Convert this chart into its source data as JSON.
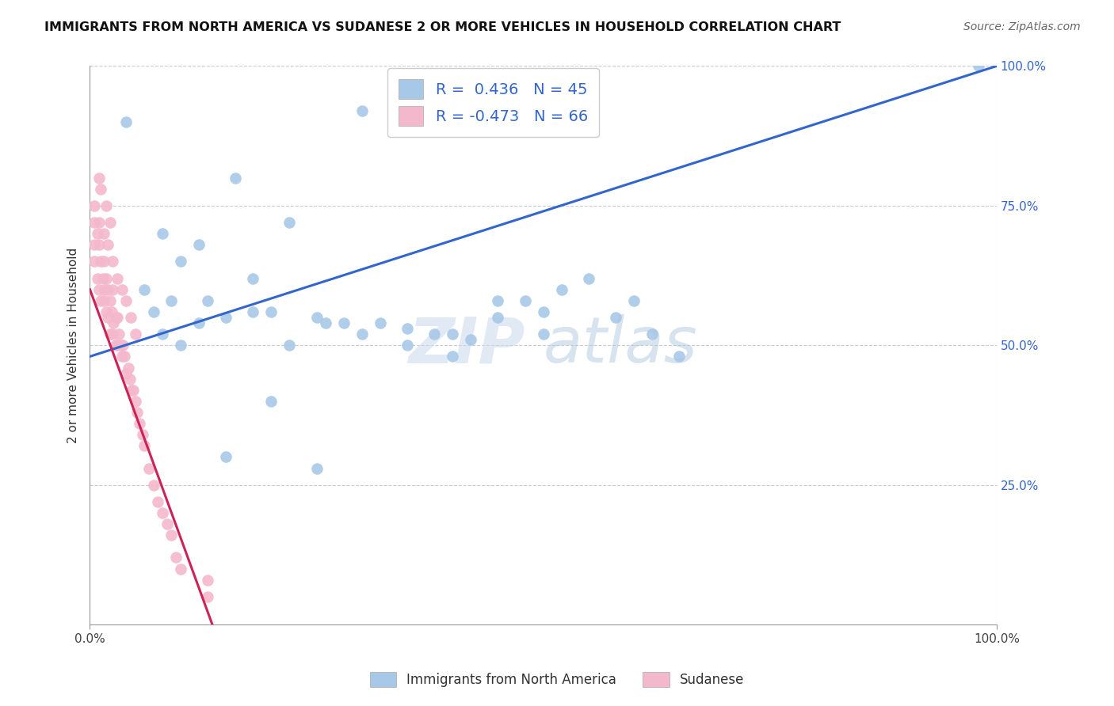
{
  "title": "IMMIGRANTS FROM NORTH AMERICA VS SUDANESE 2 OR MORE VEHICLES IN HOUSEHOLD CORRELATION CHART",
  "source": "Source: ZipAtlas.com",
  "ylabel": "2 or more Vehicles in Household",
  "xlim": [
    0,
    1.0
  ],
  "ylim": [
    0,
    1.0
  ],
  "blue_R": "0.436",
  "blue_N": "45",
  "pink_R": "-0.473",
  "pink_N": "66",
  "blue_color": "#a8c8e8",
  "pink_color": "#f4b8cc",
  "blue_line_color": "#3366cc",
  "pink_line_color": "#cc2255",
  "legend_label_blue": "Immigrants from North America",
  "legend_label_pink": "Sudanese",
  "watermark_zip": "ZIP",
  "watermark_atlas": "atlas",
  "blue_scatter_x": [
    0.3,
    0.04,
    0.16,
    0.22,
    0.08,
    0.12,
    0.1,
    0.18,
    0.06,
    0.09,
    0.13,
    0.2,
    0.07,
    0.15,
    0.25,
    0.28,
    0.32,
    0.35,
    0.38,
    0.4,
    0.42,
    0.45,
    0.48,
    0.5,
    0.52,
    0.55,
    0.58,
    0.6,
    0.62,
    0.65,
    0.1,
    0.08,
    0.12,
    0.18,
    0.22,
    0.26,
    0.3,
    0.35,
    0.4,
    0.45,
    0.5,
    0.2,
    0.15,
    0.25,
    0.98
  ],
  "blue_scatter_y": [
    0.92,
    0.9,
    0.8,
    0.72,
    0.7,
    0.68,
    0.65,
    0.62,
    0.6,
    0.58,
    0.58,
    0.56,
    0.56,
    0.55,
    0.55,
    0.54,
    0.54,
    0.53,
    0.52,
    0.52,
    0.51,
    0.55,
    0.58,
    0.56,
    0.6,
    0.62,
    0.55,
    0.58,
    0.52,
    0.48,
    0.5,
    0.52,
    0.54,
    0.56,
    0.5,
    0.54,
    0.52,
    0.5,
    0.48,
    0.58,
    0.52,
    0.4,
    0.3,
    0.28,
    1.0
  ],
  "pink_scatter_x": [
    0.005,
    0.005,
    0.005,
    0.008,
    0.008,
    0.01,
    0.01,
    0.012,
    0.012,
    0.014,
    0.015,
    0.015,
    0.016,
    0.018,
    0.018,
    0.02,
    0.02,
    0.022,
    0.022,
    0.024,
    0.025,
    0.025,
    0.026,
    0.028,
    0.028,
    0.03,
    0.03,
    0.032,
    0.034,
    0.035,
    0.036,
    0.038,
    0.04,
    0.042,
    0.044,
    0.046,
    0.048,
    0.05,
    0.052,
    0.055,
    0.058,
    0.06,
    0.065,
    0.07,
    0.075,
    0.08,
    0.085,
    0.09,
    0.095,
    0.1,
    0.005,
    0.01,
    0.015,
    0.02,
    0.025,
    0.03,
    0.035,
    0.04,
    0.045,
    0.05,
    0.01,
    0.012,
    0.018,
    0.022,
    0.13,
    0.13
  ],
  "pink_scatter_y": [
    0.72,
    0.68,
    0.65,
    0.7,
    0.62,
    0.68,
    0.6,
    0.65,
    0.58,
    0.62,
    0.65,
    0.58,
    0.6,
    0.62,
    0.56,
    0.6,
    0.55,
    0.58,
    0.52,
    0.56,
    0.6,
    0.52,
    0.54,
    0.55,
    0.5,
    0.55,
    0.5,
    0.52,
    0.5,
    0.48,
    0.5,
    0.48,
    0.45,
    0.46,
    0.44,
    0.42,
    0.42,
    0.4,
    0.38,
    0.36,
    0.34,
    0.32,
    0.28,
    0.25,
    0.22,
    0.2,
    0.18,
    0.16,
    0.12,
    0.1,
    0.75,
    0.72,
    0.7,
    0.68,
    0.65,
    0.62,
    0.6,
    0.58,
    0.55,
    0.52,
    0.8,
    0.78,
    0.75,
    0.72,
    0.08,
    0.05
  ],
  "blue_line_x0": 0.0,
  "blue_line_y0": 0.48,
  "blue_line_x1": 1.0,
  "blue_line_y1": 1.0,
  "pink_line_x0": 0.0,
  "pink_line_y0": 0.6,
  "pink_line_x1": 0.135,
  "pink_line_y1": 0.0
}
